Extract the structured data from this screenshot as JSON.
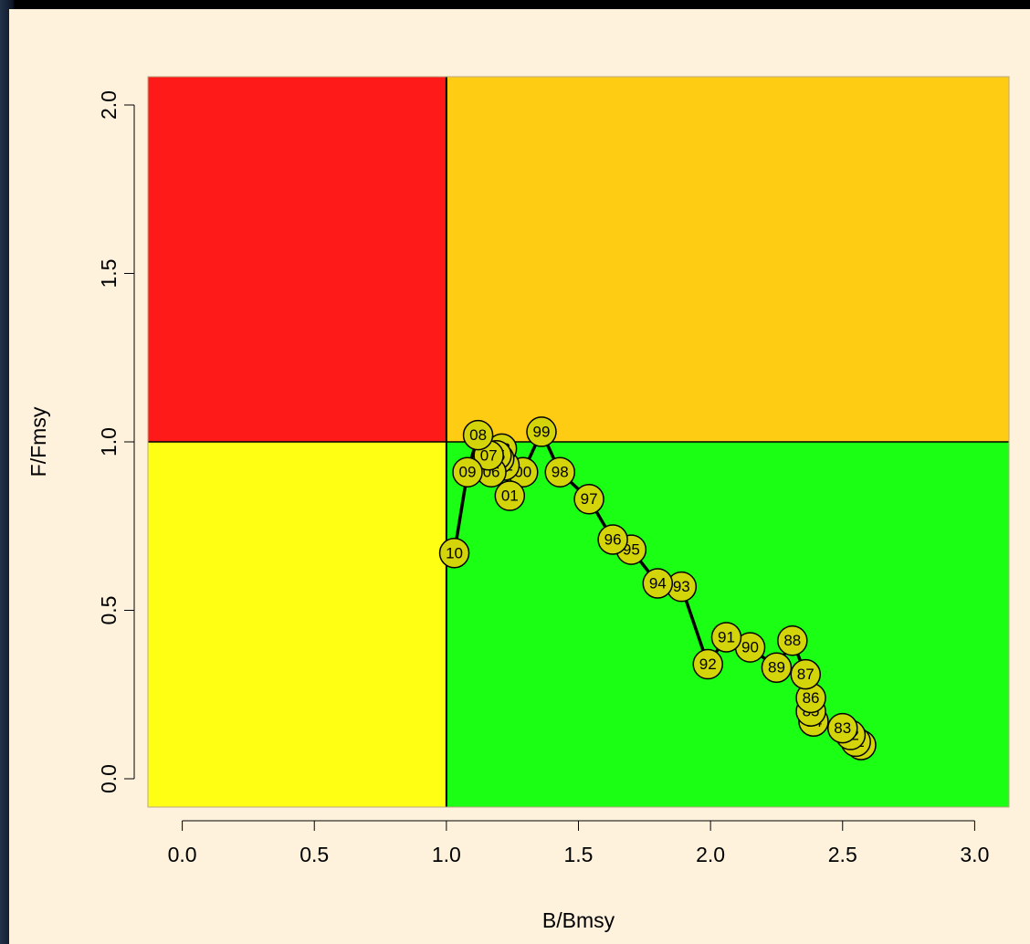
{
  "chart_data": {
    "type": "scatter",
    "title": "",
    "xlabel": "B/Bmsy",
    "ylabel": "F/Fmsy",
    "xlim": [
      -0.13,
      3.13
    ],
    "ylim": [
      -0.084,
      2.084
    ],
    "x_ticks": [
      0.0,
      0.5,
      1.0,
      1.5,
      2.0,
      2.5,
      3.0
    ],
    "x_tick_labels": [
      "0.0",
      "0.5",
      "1.0",
      "1.5",
      "2.0",
      "2.5",
      "3.0"
    ],
    "y_ticks": [
      0.0,
      0.5,
      1.0,
      1.5,
      2.0
    ],
    "y_tick_labels": [
      "0.0",
      "0.5",
      "1.0",
      "1.5",
      "2.0"
    ],
    "reference_lines": {
      "x": 1.0,
      "y": 1.0
    },
    "quadrants": [
      {
        "name": "low-biomass-high-f",
        "x": [
          -0.13,
          1.0
        ],
        "y": [
          1.0,
          2.084
        ],
        "color": "#ff1a1a"
      },
      {
        "name": "high-biomass-high-f",
        "x": [
          1.0,
          3.13
        ],
        "y": [
          1.0,
          2.084
        ],
        "color": "#ffcc14"
      },
      {
        "name": "low-biomass-low-f",
        "x": [
          -0.13,
          1.0
        ],
        "y": [
          -0.084,
          1.0
        ],
        "color": "#ffff14"
      },
      {
        "name": "high-biomass-low-f",
        "x": [
          1.0,
          3.13
        ],
        "y": [
          -0.084,
          1.0
        ],
        "color": "#1aff14"
      }
    ],
    "marker_color": "#d4d40a",
    "trajectory_color": "#000000",
    "series": [
      {
        "points": [
          {
            "label": "80",
            "x": 2.57,
            "y": 0.1
          },
          {
            "label": "81",
            "x": 2.55,
            "y": 0.11
          },
          {
            "label": "82",
            "x": 2.53,
            "y": 0.13
          },
          {
            "label": "83",
            "x": 2.5,
            "y": 0.15
          },
          {
            "label": "84",
            "x": 2.39,
            "y": 0.17
          },
          {
            "label": "85",
            "x": 2.38,
            "y": 0.2
          },
          {
            "label": "86",
            "x": 2.38,
            "y": 0.24
          },
          {
            "label": "87",
            "x": 2.36,
            "y": 0.31
          },
          {
            "label": "88",
            "x": 2.31,
            "y": 0.41
          },
          {
            "label": "89",
            "x": 2.25,
            "y": 0.33
          },
          {
            "label": "90",
            "x": 2.15,
            "y": 0.39
          },
          {
            "label": "91",
            "x": 2.06,
            "y": 0.42
          },
          {
            "label": "92",
            "x": 1.99,
            "y": 0.34
          },
          {
            "label": "93",
            "x": 1.89,
            "y": 0.57
          },
          {
            "label": "94",
            "x": 1.8,
            "y": 0.58
          },
          {
            "label": "95",
            "x": 1.7,
            "y": 0.68
          },
          {
            "label": "96",
            "x": 1.63,
            "y": 0.71
          },
          {
            "label": "97",
            "x": 1.54,
            "y": 0.83
          },
          {
            "label": "98",
            "x": 1.43,
            "y": 0.91
          },
          {
            "label": "99",
            "x": 1.36,
            "y": 1.03
          },
          {
            "label": "00",
            "x": 1.29,
            "y": 0.91
          },
          {
            "label": "01",
            "x": 1.24,
            "y": 0.84
          },
          {
            "label": "02",
            "x": 1.22,
            "y": 0.93
          },
          {
            "label": "03",
            "x": 1.21,
            "y": 0.98
          },
          {
            "label": "04",
            "x": 1.2,
            "y": 0.95
          },
          {
            "label": "05",
            "x": 1.19,
            "y": 0.96
          },
          {
            "label": "06",
            "x": 1.17,
            "y": 0.91
          },
          {
            "label": "07",
            "x": 1.16,
            "y": 0.96
          },
          {
            "label": "08",
            "x": 1.12,
            "y": 1.02
          },
          {
            "label": "09",
            "x": 1.08,
            "y": 0.91
          },
          {
            "label": "10",
            "x": 1.03,
            "y": 0.67
          }
        ]
      }
    ]
  }
}
